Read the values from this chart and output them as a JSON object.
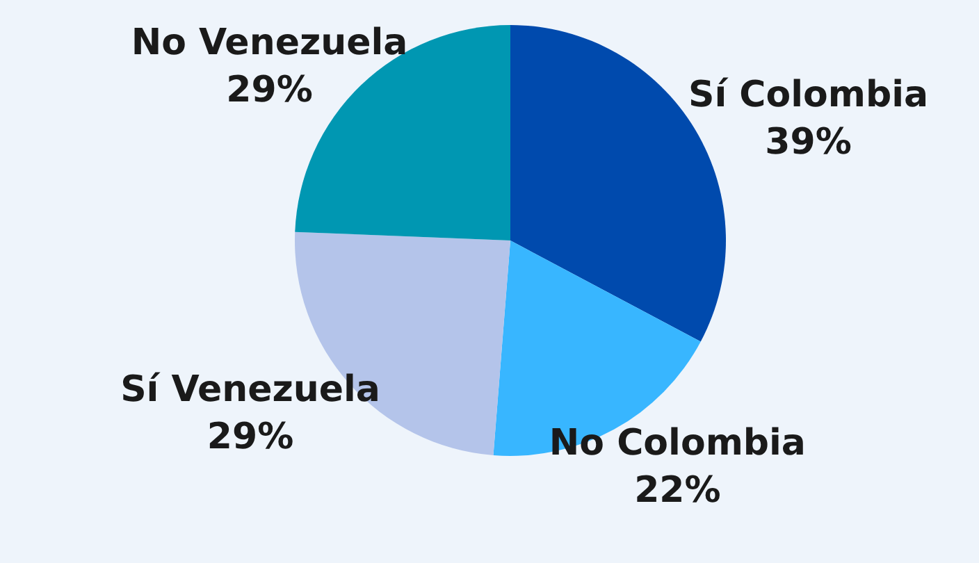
{
  "chart_data": {
    "type": "pie",
    "categories": [
      "Sí Colombia",
      "No Colombia",
      "Sí Venezuela",
      "No Venezuela"
    ],
    "values": [
      39,
      22,
      29,
      29
    ],
    "value_labels": [
      "39%",
      "22%",
      "29%",
      "29%"
    ],
    "colors": [
      "#004aad",
      "#38b6ff",
      "#b4c4ea",
      "#0097b2"
    ],
    "legend": false
  }
}
